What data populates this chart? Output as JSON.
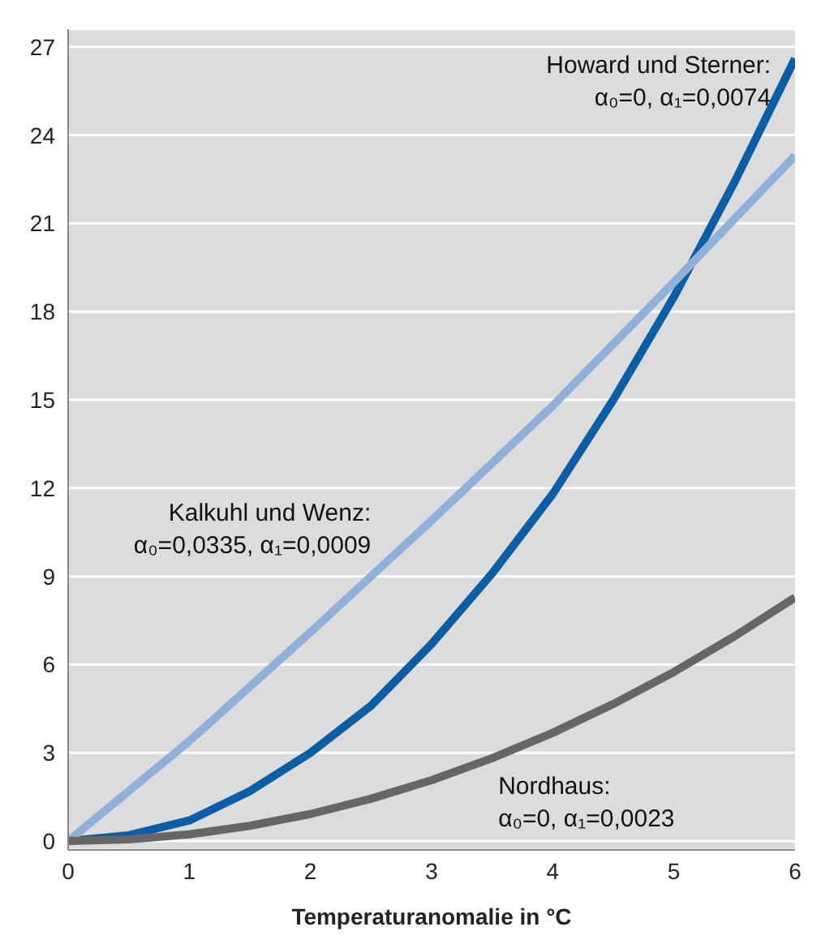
{
  "chart_data": {
    "type": "line",
    "xlabel": "Temperaturanomalie in °C",
    "xlim": [
      0,
      6
    ],
    "xticks": [
      0,
      1,
      2,
      3,
      4,
      5,
      6
    ],
    "ylim": [
      -0.3,
      27.6
    ],
    "yticks": [
      0,
      3,
      6,
      9,
      12,
      15,
      18,
      21,
      24,
      27
    ],
    "grid": "y",
    "marker": "none",
    "line_style": "solid",
    "series": [
      {
        "name": "Howard und Sterner:",
        "color": "#0a5ea8",
        "x": [
          0,
          0.5,
          1,
          1.5,
          2,
          2.5,
          3,
          3.5,
          4,
          4.5,
          5,
          5.5,
          6
        ],
        "values": [
          0,
          0.2,
          0.7,
          1.7,
          3.0,
          4.6,
          6.7,
          9.1,
          11.8,
          15.0,
          18.5,
          22.4,
          26.6
        ]
      },
      {
        "name": "Kalkuhl und Wenz:",
        "color": "#8fb0d8",
        "x": [
          0,
          1,
          2,
          3,
          4,
          5,
          6
        ],
        "values": [
          0,
          3.4,
          7.1,
          10.9,
          14.8,
          19.0,
          23.3
        ]
      },
      {
        "name": "Nordhaus:",
        "color": "#666666",
        "x": [
          0,
          0.5,
          1,
          1.5,
          2,
          2.5,
          3,
          3.5,
          4,
          4.5,
          5,
          5.5,
          6
        ],
        "values": [
          0,
          0.06,
          0.23,
          0.52,
          0.92,
          1.44,
          2.07,
          2.82,
          3.68,
          4.66,
          5.75,
          6.96,
          8.28
        ]
      }
    ],
    "annotations": [
      "α₀=0, α₁=0,0074",
      "α₀=0,0335, α₁=0,0009",
      "α₀=0, α₁=0,0023"
    ]
  }
}
